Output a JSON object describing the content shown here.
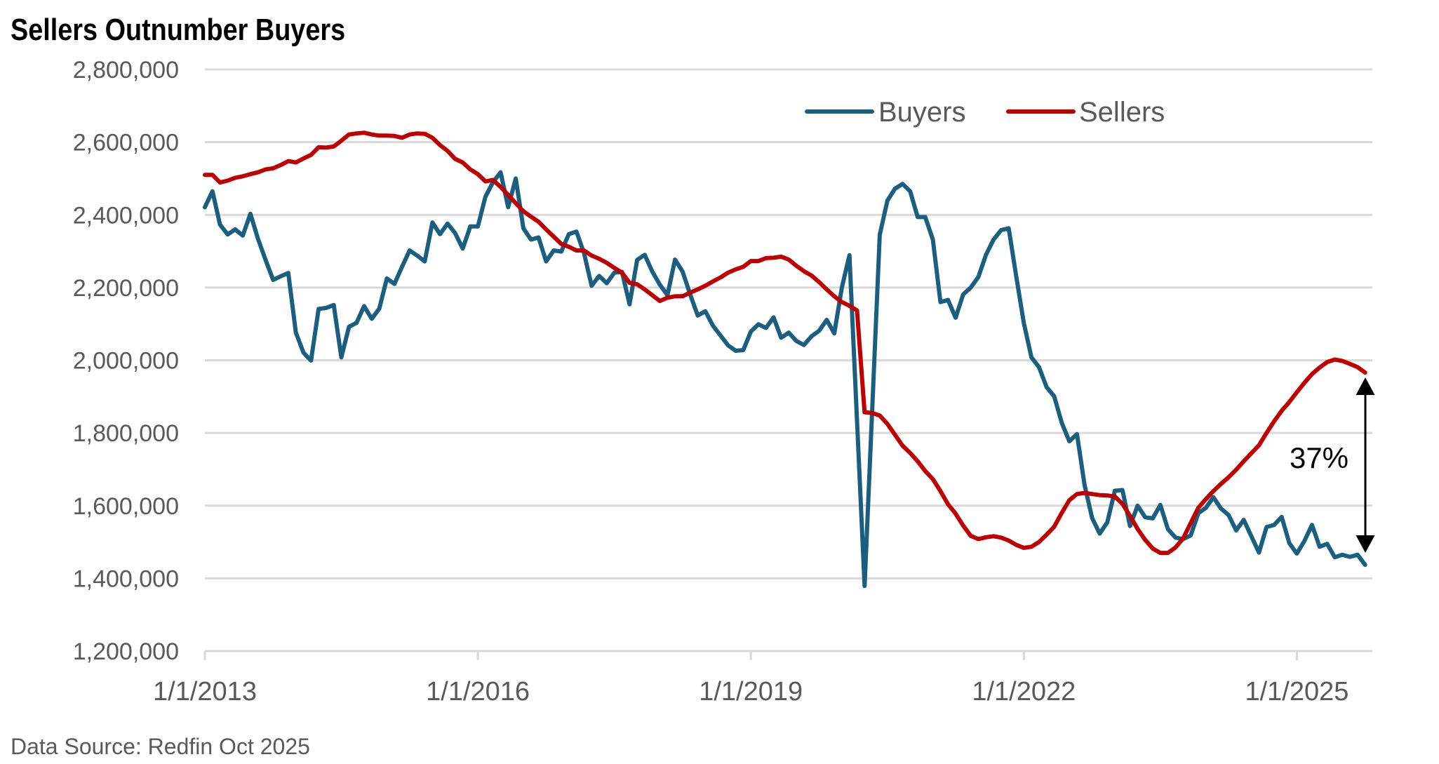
{
  "chart_data": {
    "type": "line",
    "title": "Sellers Outnumber Buyers",
    "xlabel": "",
    "ylabel": "",
    "source": "Data Source: Redfin Oct 2025",
    "x_start": "2013-01",
    "x_end": "2025-10",
    "x_frequency": "monthly",
    "x_tick_labels": [
      "1/1/2013",
      "1/1/2016",
      "1/1/2019",
      "1/1/2022",
      "1/1/2025"
    ],
    "x_tick_years": [
      2013,
      2016,
      2019,
      2022,
      2025
    ],
    "ylim": [
      1200000,
      2800000
    ],
    "y_tick_values": [
      1200000,
      1400000,
      1600000,
      1800000,
      2000000,
      2200000,
      2400000,
      2600000,
      2800000
    ],
    "y_tick_labels": [
      "1,200,000",
      "1,400,000",
      "1,600,000",
      "1,800,000",
      "2,000,000",
      "2,200,000",
      "2,400,000",
      "2,600,000",
      "2,800,000"
    ],
    "grid": true,
    "legend_position": "top-right",
    "series": [
      {
        "name": "Buyers",
        "color": "#1a5e80",
        "values": [
          2421000,
          2465000,
          2373000,
          2346000,
          2360000,
          2343000,
          2403000,
          2334000,
          2276000,
          2221000,
          2231000,
          2240000,
          2076000,
          2021000,
          1999000,
          2141000,
          2144000,
          2152000,
          2008000,
          2092000,
          2103000,
          2149000,
          2114000,
          2142000,
          2225000,
          2210000,
          2257000,
          2302000,
          2288000,
          2272000,
          2379000,
          2347000,
          2376000,
          2350000,
          2307000,
          2368000,
          2368000,
          2450000,
          2490000,
          2517000,
          2421000,
          2500000,
          2363000,
          2332000,
          2338000,
          2272000,
          2302000,
          2299000,
          2347000,
          2354000,
          2295000,
          2205000,
          2232000,
          2212000,
          2241000,
          2243000,
          2154000,
          2276000,
          2290000,
          2244000,
          2208000,
          2179000,
          2277000,
          2244000,
          2181000,
          2123000,
          2135000,
          2095000,
          2068000,
          2041000,
          2026000,
          2028000,
          2079000,
          2099000,
          2089000,
          2118000,
          2062000,
          2076000,
          2053000,
          2042000,
          2066000,
          2081000,
          2111000,
          2074000,
          2200000,
          2289000,
          1834000,
          1379000,
          1862000,
          2345000,
          2439000,
          2472000,
          2485000,
          2465000,
          2394000,
          2394000,
          2332000,
          2160000,
          2166000,
          2117000,
          2181000,
          2200000,
          2229000,
          2290000,
          2332000,
          2358000,
          2363000,
          2230000,
          2102000,
          2008000,
          1981000,
          1926000,
          1901000,
          1828000,
          1777000,
          1797000,
          1657000,
          1566000,
          1523000,
          1554000,
          1641000,
          1643000,
          1544000,
          1600000,
          1568000,
          1565000,
          1602000,
          1535000,
          1512000,
          1508000,
          1518000,
          1579000,
          1594000,
          1623000,
          1592000,
          1574000,
          1532000,
          1561000,
          1516000,
          1471000,
          1541000,
          1547000,
          1569000,
          1497000,
          1468000,
          1503000,
          1547000,
          1487000,
          1495000,
          1458000,
          1465000,
          1459000,
          1465000,
          1437000
        ]
      },
      {
        "name": "Sellers",
        "color": "#c00000",
        "values": [
          2510000,
          2510000,
          2489000,
          2494000,
          2502000,
          2506000,
          2512000,
          2517000,
          2525000,
          2528000,
          2537000,
          2548000,
          2544000,
          2555000,
          2565000,
          2586000,
          2585000,
          2588000,
          2604000,
          2621000,
          2624000,
          2626000,
          2621000,
          2618000,
          2618000,
          2617000,
          2612000,
          2621000,
          2624000,
          2623000,
          2612000,
          2592000,
          2576000,
          2554000,
          2544000,
          2525000,
          2512000,
          2492000,
          2496000,
          2477000,
          2455000,
          2432000,
          2410000,
          2395000,
          2381000,
          2360000,
          2340000,
          2320000,
          2312000,
          2302000,
          2302000,
          2288000,
          2279000,
          2268000,
          2254000,
          2241000,
          2213000,
          2209000,
          2195000,
          2179000,
          2163000,
          2172000,
          2176000,
          2176000,
          2186000,
          2195000,
          2205000,
          2217000,
          2228000,
          2241000,
          2250000,
          2257000,
          2273000,
          2273000,
          2281000,
          2282000,
          2285000,
          2277000,
          2260000,
          2245000,
          2233000,
          2215000,
          2195000,
          2176000,
          2160000,
          2150000,
          2137000,
          1857000,
          1855000,
          1848000,
          1825000,
          1795000,
          1765000,
          1745000,
          1722000,
          1695000,
          1673000,
          1640000,
          1604000,
          1578000,
          1545000,
          1517000,
          1508000,
          1513000,
          1516000,
          1512000,
          1504000,
          1492000,
          1484000,
          1487000,
          1500000,
          1520000,
          1542000,
          1580000,
          1615000,
          1632000,
          1635000,
          1632000,
          1629000,
          1628000,
          1625000,
          1605000,
          1572000,
          1536000,
          1506000,
          1482000,
          1470000,
          1470000,
          1485000,
          1510000,
          1552000,
          1594000,
          1618000,
          1640000,
          1660000,
          1678000,
          1699000,
          1722000,
          1744000,
          1766000,
          1800000,
          1832000,
          1861000,
          1885000,
          1912000,
          1938000,
          1962000,
          1980000,
          1995000,
          2002000,
          1998000,
          1990000,
          1981000,
          1966000
        ]
      }
    ],
    "annotations": [
      {
        "type": "double-arrow",
        "label": "37%",
        "from_series": "Sellers",
        "to_series": "Buyers",
        "at": "2025-10"
      }
    ]
  }
}
